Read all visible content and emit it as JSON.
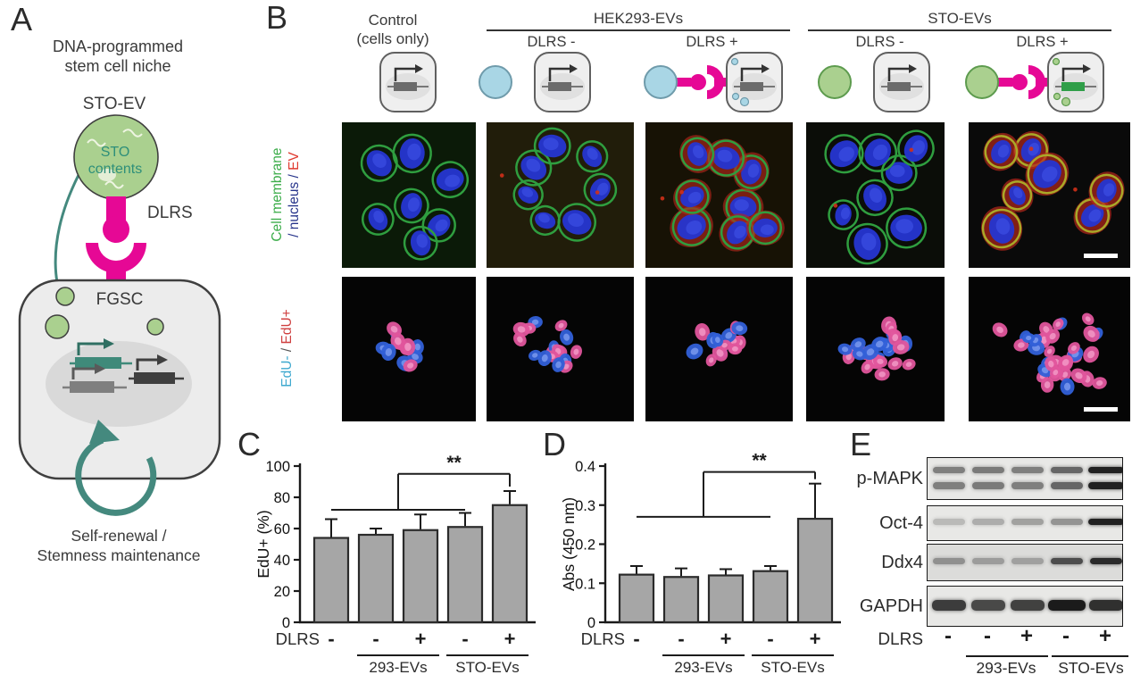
{
  "panelA": {
    "label": "A",
    "title_line1": "DNA-programmed",
    "title_line2": "stem cell niche",
    "ev_label": "STO-EV",
    "ev_content_line1": "STO",
    "ev_content_line2": "contents",
    "receptor_label": "DLRS",
    "cell_label": "FGSC",
    "caption_line1": "Self-renewal /",
    "caption_line2": "Stemness maintenance"
  },
  "panelB": {
    "label": "B",
    "control_line1": "Control",
    "control_line2": "(cells only)",
    "groups": [
      {
        "label": "HEK293-EVs",
        "sub": [
          "DLRS -",
          "DLRS +"
        ]
      },
      {
        "label": "STO-EVs",
        "sub": [
          "DLRS -",
          "DLRS +"
        ]
      }
    ],
    "row1_label": {
      "part1": "Cell membrane",
      "part2": "/ nucleus / ",
      "part3": "EV"
    },
    "row2_label": {
      "part1": "EdU-",
      "part2": " / ",
      "part3": "EdU+"
    }
  },
  "panelC": {
    "label": "C"
  },
  "panelD": {
    "label": "D"
  },
  "panelE": {
    "label": "E",
    "rows": [
      {
        "label": "p-MAPK",
        "band_style": "double",
        "intensities": [
          0.5,
          0.52,
          0.5,
          0.62,
          0.95
        ]
      },
      {
        "label": "Oct-4",
        "band_style": "single",
        "intensities": [
          0.22,
          0.28,
          0.34,
          0.4,
          0.95
        ]
      },
      {
        "label": "Ddx4",
        "band_style": "single",
        "intensities": [
          0.38,
          0.32,
          0.3,
          0.72,
          0.9
        ]
      },
      {
        "label": "GAPDH",
        "band_style": "thick",
        "intensities": [
          0.82,
          0.76,
          0.8,
          0.98,
          0.88
        ]
      }
    ],
    "dlrs_label": "DLRS",
    "signs": [
      "-",
      "-",
      "+",
      "-",
      "+"
    ],
    "group_labels": [
      "293-EVs",
      "STO-EVs"
    ]
  },
  "chart_data": [
    {
      "id": "C",
      "type": "bar",
      "ylabel": "EdU+ (%)",
      "x_row_label": "DLRS",
      "categories": [
        "-",
        "-",
        "+",
        "-",
        "+"
      ],
      "values": [
        54,
        56,
        59,
        61,
        75
      ],
      "errors": [
        12,
        4,
        10,
        9,
        9
      ],
      "ylim": [
        0,
        100
      ],
      "yticks": [
        0,
        20,
        40,
        60,
        80,
        100
      ],
      "groups": [
        {
          "label": "293-EVs",
          "bars": [
            1,
            2
          ]
        },
        {
          "label": "STO-EVs",
          "bars": [
            3,
            4
          ]
        }
      ],
      "significance": {
        "label": "**",
        "covered_bars": [
          0,
          3
        ],
        "bracket_y": 72,
        "top_y": 95,
        "target_bar": 4
      }
    },
    {
      "id": "D",
      "type": "bar",
      "ylabel": "Abs (450 nm)",
      "x_row_label": "DLRS",
      "categories": [
        "-",
        "-",
        "+",
        "-",
        "+"
      ],
      "values": [
        0.122,
        0.116,
        0.12,
        0.131,
        0.265
      ],
      "errors": [
        0.022,
        0.022,
        0.016,
        0.013,
        0.09
      ],
      "ylim": [
        0,
        0.4
      ],
      "yticks": [
        0,
        0.1,
        0.2,
        0.3,
        0.4
      ],
      "groups": [
        {
          "label": "293-EVs",
          "bars": [
            1,
            2
          ]
        },
        {
          "label": "STO-EVs",
          "bars": [
            3,
            4
          ]
        }
      ],
      "significance": {
        "label": "**",
        "covered_bars": [
          0,
          3
        ],
        "bracket_y": 0.27,
        "top_y": 0.385,
        "target_bar": 4
      }
    }
  ],
  "colors": {
    "dlrs_magenta": "#e60895",
    "ev_green_fill": "#aad08f",
    "ev_green_stroke": "#5d9b4e",
    "ev_blue_fill": "#a9d6e5",
    "ev_blue_stroke": "#6f9bab",
    "teal_arrow": "#44897e",
    "membrane_green": "#3bac49",
    "nucleus_navy": "#27348b",
    "ev_red": "#e03a2f",
    "edu_cyan": "#3fa9cf",
    "edu_red": "#cf4040",
    "bar_fill": "#a6a6a6",
    "bar_stroke": "#2b2b2b",
    "gene_green": "#2f9e48",
    "gene_teal": "#3f8a7a"
  },
  "microscopy": {
    "row1_tiles": [
      {
        "seed": 11,
        "kind": "cells",
        "cells": 7,
        "bg": "#0b1a08",
        "ring": "#2f9e3f",
        "red": 0,
        "scalebar": false
      },
      {
        "seed": 22,
        "kind": "cells",
        "cells": 7,
        "bg": "#211d0a",
        "ring": "#2f9e3f",
        "red": 0.25,
        "scalebar": false
      },
      {
        "seed": 33,
        "kind": "cells",
        "cells": 8,
        "bg": "#171205",
        "ring": "#2f9e3f",
        "red": 0.85,
        "scalebar": false
      },
      {
        "seed": 44,
        "kind": "cells",
        "cells": 8,
        "bg": "#0b0d08",
        "ring": "#2f9e3f",
        "red": 0.12,
        "scalebar": false
      },
      {
        "seed": 55,
        "kind": "cells",
        "cells": 7,
        "bg": "#0a0a0a",
        "ring": "#aaa928",
        "red": 0.95,
        "scalebar": true
      }
    ],
    "row2_tiles": [
      {
        "seed": 66,
        "kind": "cluster",
        "n": 12,
        "pink": 0.45,
        "spread": 24,
        "bg": "#050505",
        "scalebar": false
      },
      {
        "seed": 77,
        "kind": "cluster",
        "n": 17,
        "pink": 0.5,
        "spread": 38,
        "bg": "#050505",
        "scalebar": false
      },
      {
        "seed": 88,
        "kind": "cluster",
        "n": 15,
        "pink": 0.55,
        "spread": 32,
        "bg": "#050505",
        "scalebar": false
      },
      {
        "seed": 99,
        "kind": "cluster",
        "n": 27,
        "pink": 0.45,
        "spread": 38,
        "bg": "#050505",
        "scalebar": false
      },
      {
        "seed": 110,
        "kind": "cluster",
        "n": 36,
        "pink": 0.62,
        "spread": 52,
        "bg": "#050505",
        "scalebar": true
      }
    ]
  }
}
